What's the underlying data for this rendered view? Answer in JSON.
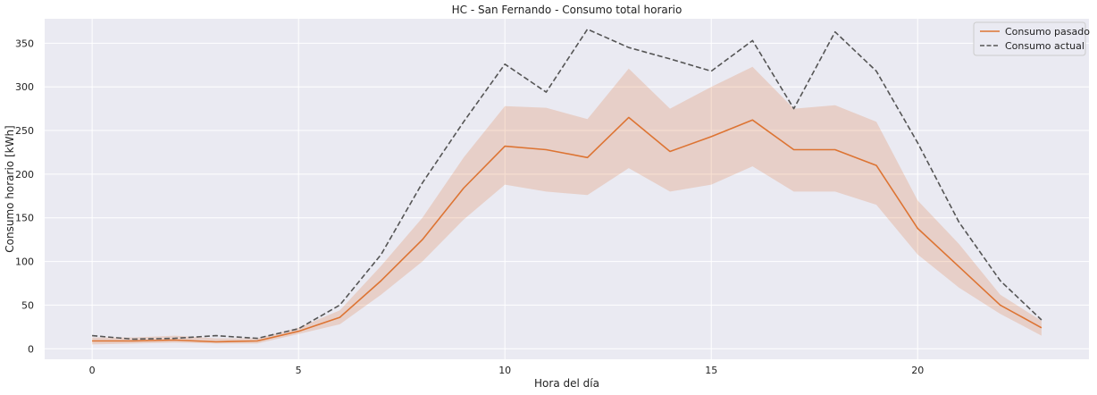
{
  "chart_data": {
    "type": "line",
    "title": "HC - San Fernando - Consumo total horario",
    "xlabel": "Hora del día",
    "ylabel": "Consumo horario [kWh]",
    "xlim": [
      -1.15,
      24.15
    ],
    "ylim": [
      -12,
      378
    ],
    "xticks": [
      0,
      5,
      10,
      15,
      20
    ],
    "yticks": [
      0,
      50,
      100,
      150,
      200,
      250,
      300,
      350
    ],
    "grid": true,
    "legend_position": "top-right",
    "x": [
      0,
      1,
      2,
      3,
      4,
      5,
      6,
      7,
      8,
      9,
      10,
      11,
      12,
      13,
      14,
      15,
      16,
      17,
      18,
      19,
      20,
      21,
      22,
      23
    ],
    "series": [
      {
        "name": "Consumo pasado",
        "style": "solid",
        "color": "#dd7433",
        "values": [
          9,
          9,
          10,
          8,
          9,
          20,
          36,
          78,
          125,
          184,
          232,
          228,
          219,
          265,
          226,
          243,
          262,
          228,
          228,
          210,
          138,
          94,
          50,
          24
        ],
        "band_lower": [
          5,
          6,
          7,
          6,
          6,
          17,
          28,
          62,
          100,
          148,
          188,
          180,
          176,
          207,
          180,
          188,
          209,
          180,
          180,
          165,
          108,
          70,
          40,
          15
        ],
        "band_upper": [
          13,
          13,
          15,
          12,
          12,
          24,
          44,
          95,
          150,
          219,
          278,
          276,
          263,
          321,
          275,
          300,
          323,
          275,
          279,
          260,
          170,
          120,
          62,
          32
        ]
      },
      {
        "name": "Consumo actual",
        "style": "dashed",
        "color": "#555555",
        "values": [
          15,
          11,
          12,
          15,
          12,
          23,
          50,
          108,
          190,
          260,
          326,
          294,
          366,
          345,
          332,
          318,
          353,
          275,
          363,
          318,
          236,
          145,
          78,
          33
        ]
      }
    ]
  }
}
